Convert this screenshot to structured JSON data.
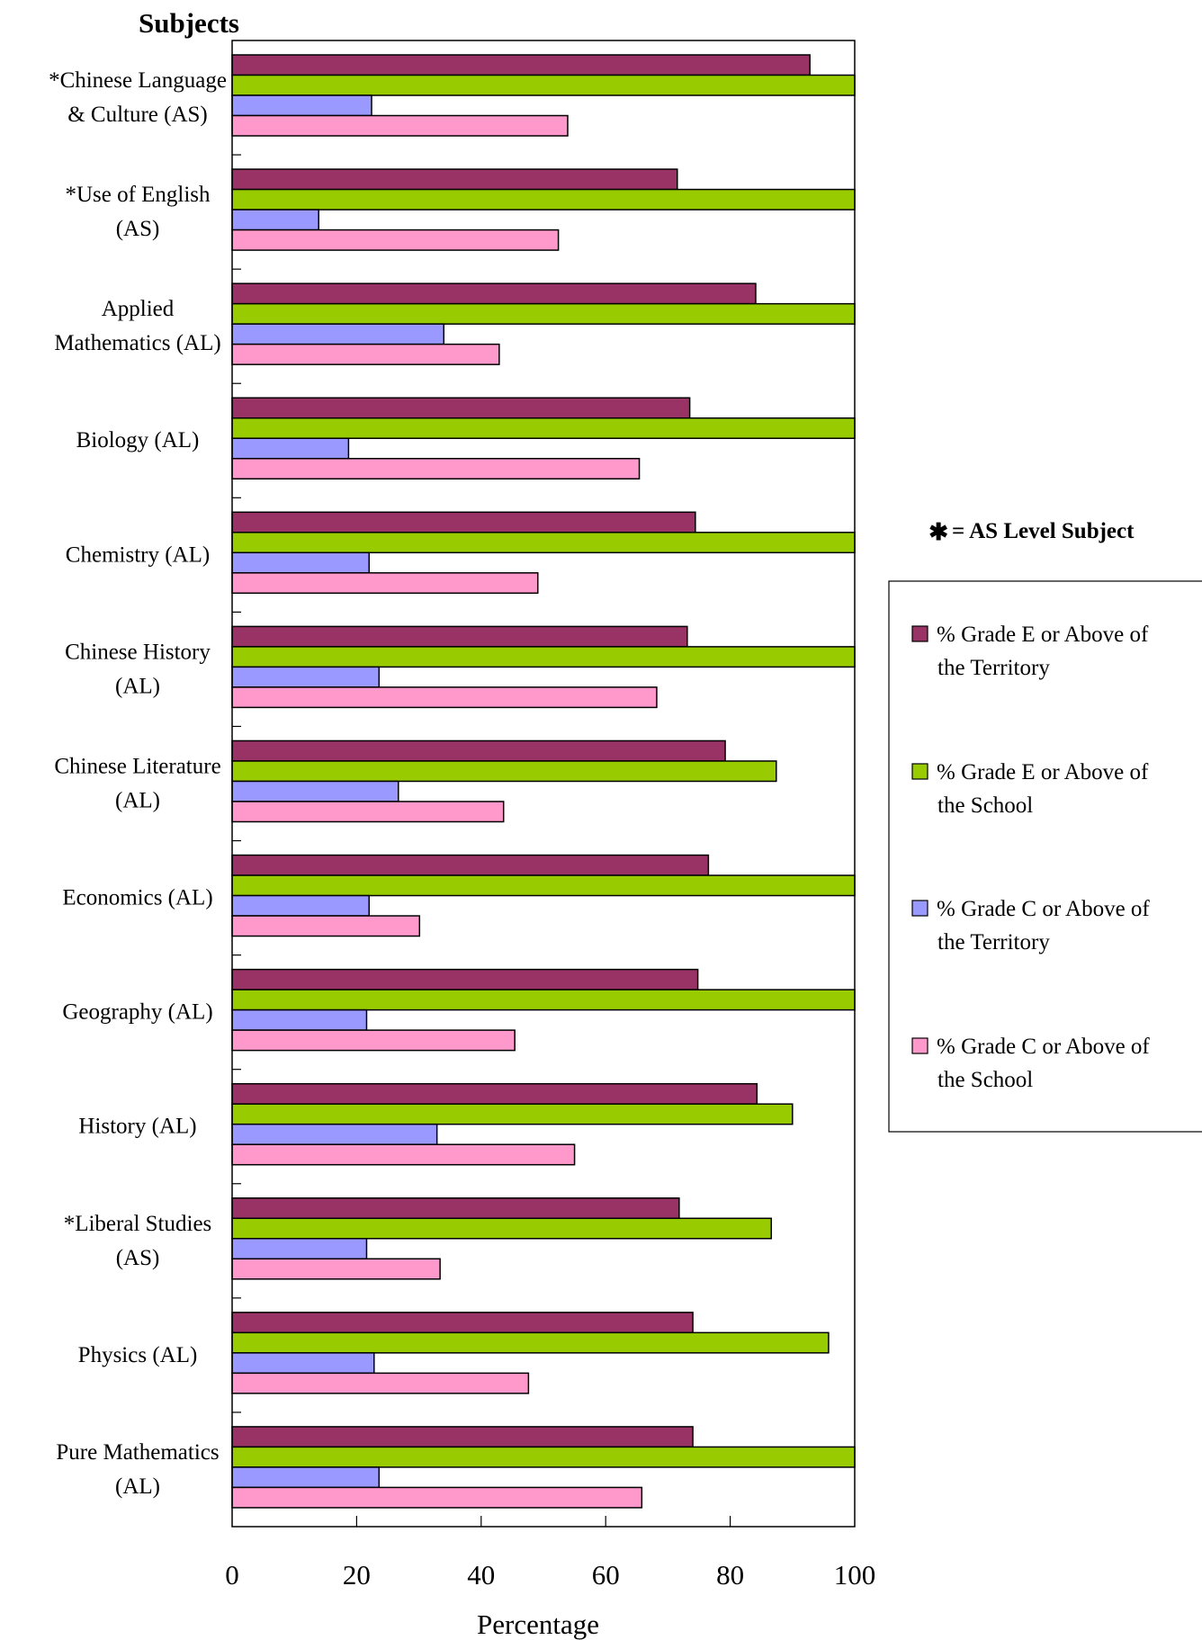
{
  "chart_data": {
    "type": "bar",
    "orientation": "horizontal",
    "title": "Subjects",
    "xlabel": "Percentage",
    "ylabel": "",
    "xlim": [
      0,
      100
    ],
    "xticks": [
      "0",
      "20",
      "40",
      "60",
      "80",
      "100"
    ],
    "grid": false,
    "legend_position": "right",
    "note": "= AS Level Subject",
    "note_symbol": "✱",
    "categories": [
      [
        "*Chinese Language",
        "& Culture (AS)"
      ],
      [
        "*Use of English",
        "(AS)"
      ],
      [
        "Applied",
        "Mathematics (AL)"
      ],
      [
        "Biology (AL)"
      ],
      [
        "Chemistry (AL)"
      ],
      [
        "Chinese History",
        "(AL)"
      ],
      [
        "Chinese Literature",
        "(AL)"
      ],
      [
        "Economics (AL)"
      ],
      [
        "Geography (AL)"
      ],
      [
        "History (AL)"
      ],
      [
        "*Liberal Studies",
        "(AS)"
      ],
      [
        "Physics (AL)"
      ],
      [
        "Pure Mathematics",
        "(AL)"
      ]
    ],
    "series": [
      {
        "name": [
          "% Grade E or Above of",
          "the Territory"
        ],
        "color": "#993366",
        "values": [
          92.8,
          71.5,
          84.1,
          73.5,
          74.4,
          73.1,
          79.2,
          76.5,
          74.8,
          84.3,
          71.8,
          74.0,
          74.0
        ]
      },
      {
        "name": [
          "% Grade E or Above of",
          "the School"
        ],
        "color": "#99cc00",
        "values": [
          100,
          100,
          100,
          100,
          100,
          100,
          87.4,
          100,
          100,
          90.0,
          86.6,
          95.8,
          100
        ]
      },
      {
        "name": [
          "% Grade C or Above of",
          "the Territory"
        ],
        "color": "#9999ff",
        "values": [
          22.4,
          13.9,
          34.0,
          18.7,
          22.0,
          23.6,
          26.7,
          22.0,
          21.6,
          32.9,
          21.6,
          22.8,
          23.6
        ]
      },
      {
        "name": [
          "% Grade C or Above of",
          "the School"
        ],
        "color": "#ff99cc",
        "values": [
          53.9,
          52.4,
          42.9,
          65.4,
          49.1,
          68.2,
          43.6,
          30.1,
          45.4,
          55.0,
          33.4,
          47.6,
          65.8
        ]
      }
    ]
  }
}
